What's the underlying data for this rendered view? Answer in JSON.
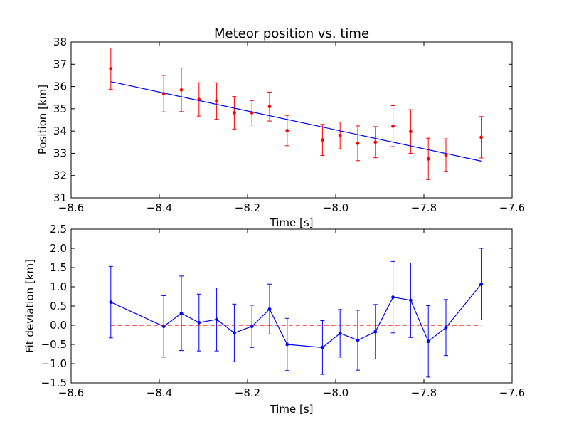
{
  "chart_data": [
    {
      "type": "scatter",
      "title": "Meteor position vs. time",
      "xlabel": "Time [s]",
      "ylabel": "Position [km]",
      "xlim": [
        -8.6,
        -7.6
      ],
      "ylim": [
        31,
        38
      ],
      "xticks": [
        "−8.6",
        "−8.4",
        "−8.2",
        "−8.0",
        "−7.8",
        "−7.6"
      ],
      "xtick_values": [
        -8.6,
        -8.4,
        -8.2,
        -8.0,
        -7.8,
        -7.6
      ],
      "yticks": [
        "31",
        "32",
        "33",
        "34",
        "35",
        "36",
        "37",
        "38"
      ],
      "ytick_values": [
        31,
        32,
        33,
        34,
        35,
        36,
        37,
        38
      ],
      "grid": false,
      "series": [
        {
          "kind": "errorbar-points",
          "color": "#ff0000",
          "x": [
            -8.51,
            -8.39,
            -8.35,
            -8.31,
            -8.27,
            -8.23,
            -8.19,
            -8.15,
            -8.11,
            -8.03,
            -7.99,
            -7.95,
            -7.91,
            -7.87,
            -7.83,
            -7.79,
            -7.75,
            -7.67
          ],
          "y": [
            36.8,
            35.68,
            35.85,
            35.42,
            35.35,
            34.82,
            34.82,
            35.1,
            34.02,
            33.6,
            33.8,
            33.45,
            33.5,
            34.22,
            33.98,
            32.75,
            32.92,
            33.72
          ],
          "err": [
            0.93,
            0.82,
            0.98,
            0.75,
            0.82,
            0.73,
            0.55,
            0.65,
            0.68,
            0.7,
            0.6,
            0.78,
            0.7,
            0.92,
            0.98,
            0.93,
            0.73,
            0.93
          ]
        },
        {
          "kind": "fit-line",
          "color": "#0000ff",
          "x": [
            -8.51,
            -7.67
          ],
          "y": [
            36.22,
            32.65
          ]
        }
      ]
    },
    {
      "type": "line",
      "title": "",
      "xlabel": "Time [s]",
      "ylabel": "Fit deviation [km]",
      "xlim": [
        -8.6,
        -7.6
      ],
      "ylim": [
        -1.5,
        2.5
      ],
      "xticks": [
        "−8.6",
        "−8.4",
        "−8.2",
        "−8.0",
        "−7.8",
        "−7.6"
      ],
      "xtick_values": [
        -8.6,
        -8.4,
        -8.2,
        -8.0,
        -7.8,
        -7.6
      ],
      "yticks": [
        "−1.5",
        "−1.0",
        "−0.5",
        "0.0",
        "0.5",
        "1.0",
        "1.5",
        "2.0",
        "2.5"
      ],
      "ytick_values": [
        -1.5,
        -1.0,
        -0.5,
        0.0,
        0.5,
        1.0,
        1.5,
        2.0,
        2.5
      ],
      "grid": false,
      "series": [
        {
          "kind": "errorbar-line",
          "color": "#0000ff",
          "x": [
            -8.51,
            -8.39,
            -8.35,
            -8.31,
            -8.27,
            -8.23,
            -8.19,
            -8.15,
            -8.11,
            -8.03,
            -7.99,
            -7.95,
            -7.91,
            -7.87,
            -7.83,
            -7.79,
            -7.75,
            -7.67
          ],
          "y": [
            0.6,
            -0.03,
            0.31,
            0.07,
            0.15,
            -0.2,
            -0.03,
            0.42,
            -0.5,
            -0.58,
            -0.21,
            -0.39,
            -0.17,
            0.73,
            0.65,
            -0.42,
            -0.06,
            1.07
          ],
          "err": [
            0.93,
            0.8,
            0.97,
            0.74,
            0.82,
            0.75,
            0.55,
            0.65,
            0.68,
            0.7,
            0.62,
            0.78,
            0.71,
            0.93,
            0.97,
            0.93,
            0.73,
            0.93
          ]
        },
        {
          "kind": "zero-line",
          "color": "#ff0000",
          "style": "dashed",
          "x": [
            -8.51,
            -7.67
          ],
          "y": [
            0,
            0
          ]
        }
      ]
    }
  ]
}
